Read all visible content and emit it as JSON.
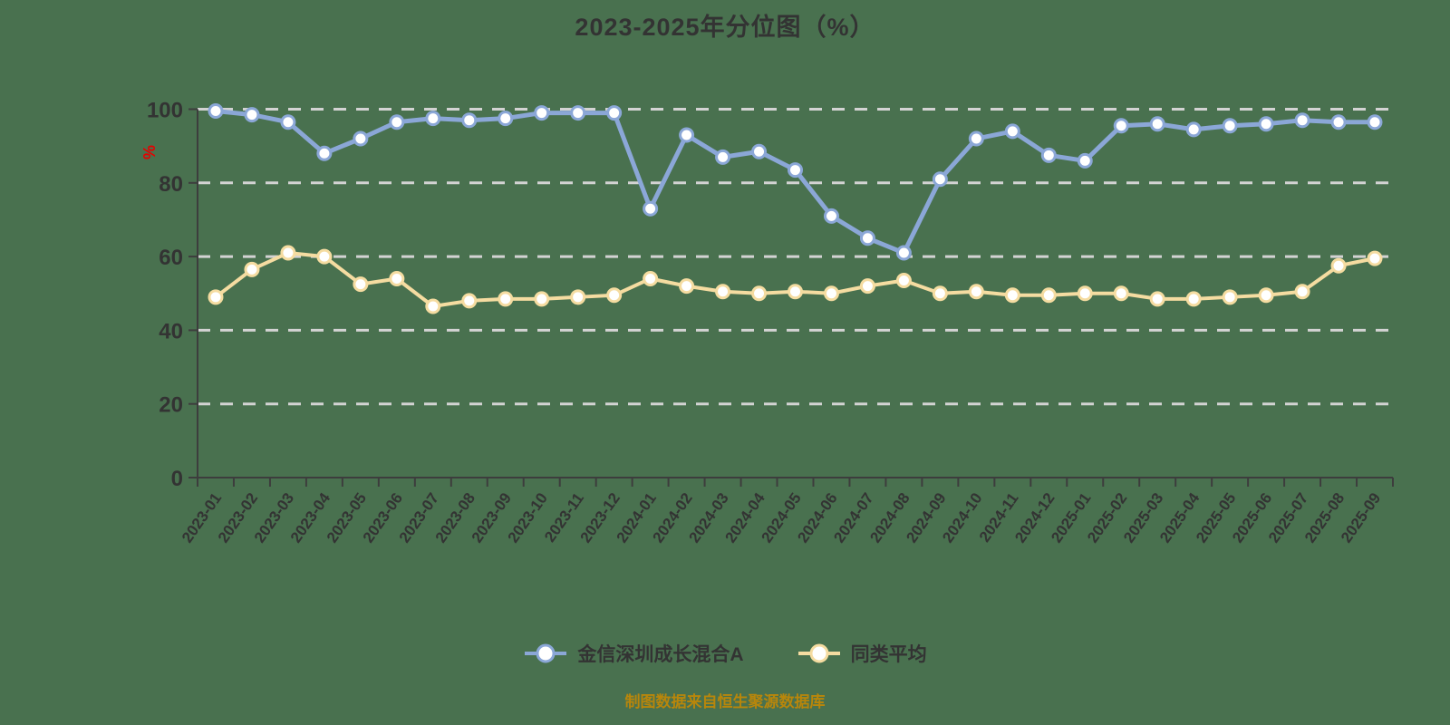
{
  "page": {
    "background": "#49714F"
  },
  "title": {
    "text": "2023-2025年分位图（%）",
    "color": "#333333"
  },
  "caption": {
    "text": "制图数据来自恒生聚源数据库",
    "color": "#B8860B"
  },
  "legend": [
    {
      "label": "金信深圳成长混合A",
      "color": "#8BA7D7"
    },
    {
      "label": "同类平均",
      "color": "#F5DCA1"
    }
  ],
  "chart_data": {
    "type": "line",
    "title": "2023-2025年分位图（%）",
    "xlabel": "",
    "ylabel": "%",
    "ylabel_color": "#E60000",
    "ylim": [
      0,
      100
    ],
    "yticks": [
      0,
      20,
      40,
      60,
      80,
      100
    ],
    "grid": "horizontal-dashed",
    "grid_color": "#D3D3D3",
    "axis_color": "#3D3D3D",
    "tick_label_color": "#333333",
    "legend_position": "bottom",
    "categories": [
      "2023-01",
      "2023-02",
      "2023-03",
      "2023-04",
      "2023-05",
      "2023-06",
      "2023-07",
      "2023-08",
      "2023-09",
      "2023-10",
      "2023-11",
      "2023-12",
      "2024-01",
      "2024-02",
      "2024-03",
      "2024-04",
      "2024-05",
      "2024-06",
      "2024-07",
      "2024-08",
      "2024-09",
      "2024-10",
      "2024-11",
      "2024-12",
      "2025-01",
      "2025-02",
      "2025-03",
      "2025-04",
      "2025-05",
      "2025-06",
      "2025-07",
      "2025-08",
      "2025-09"
    ],
    "series": [
      {
        "name": "金信深圳成长混合A",
        "color": "#8BA7D7",
        "marker": "circle-white-fill",
        "values": [
          99.5,
          98.5,
          96.5,
          88,
          92,
          96.5,
          97.5,
          97,
          97.5,
          99,
          99,
          99,
          73,
          93,
          87,
          88.5,
          83.5,
          71,
          65,
          61,
          81,
          92,
          94,
          87.5,
          86,
          95.5,
          96,
          94.5,
          95.5,
          96,
          97,
          96.5,
          96.5
        ]
      },
      {
        "name": "同类平均",
        "color": "#F5DCA1",
        "marker": "circle-white-fill",
        "values": [
          49,
          56.5,
          61,
          60,
          52.5,
          54,
          46.5,
          48,
          48.5,
          48.5,
          49,
          49.5,
          54,
          52,
          50.5,
          50,
          50.5,
          50,
          52,
          53.5,
          50,
          50.5,
          49.5,
          49.5,
          50,
          50,
          48.5,
          48.5,
          49,
          49.5,
          50.5,
          57.5,
          59.5
        ]
      }
    ]
  }
}
